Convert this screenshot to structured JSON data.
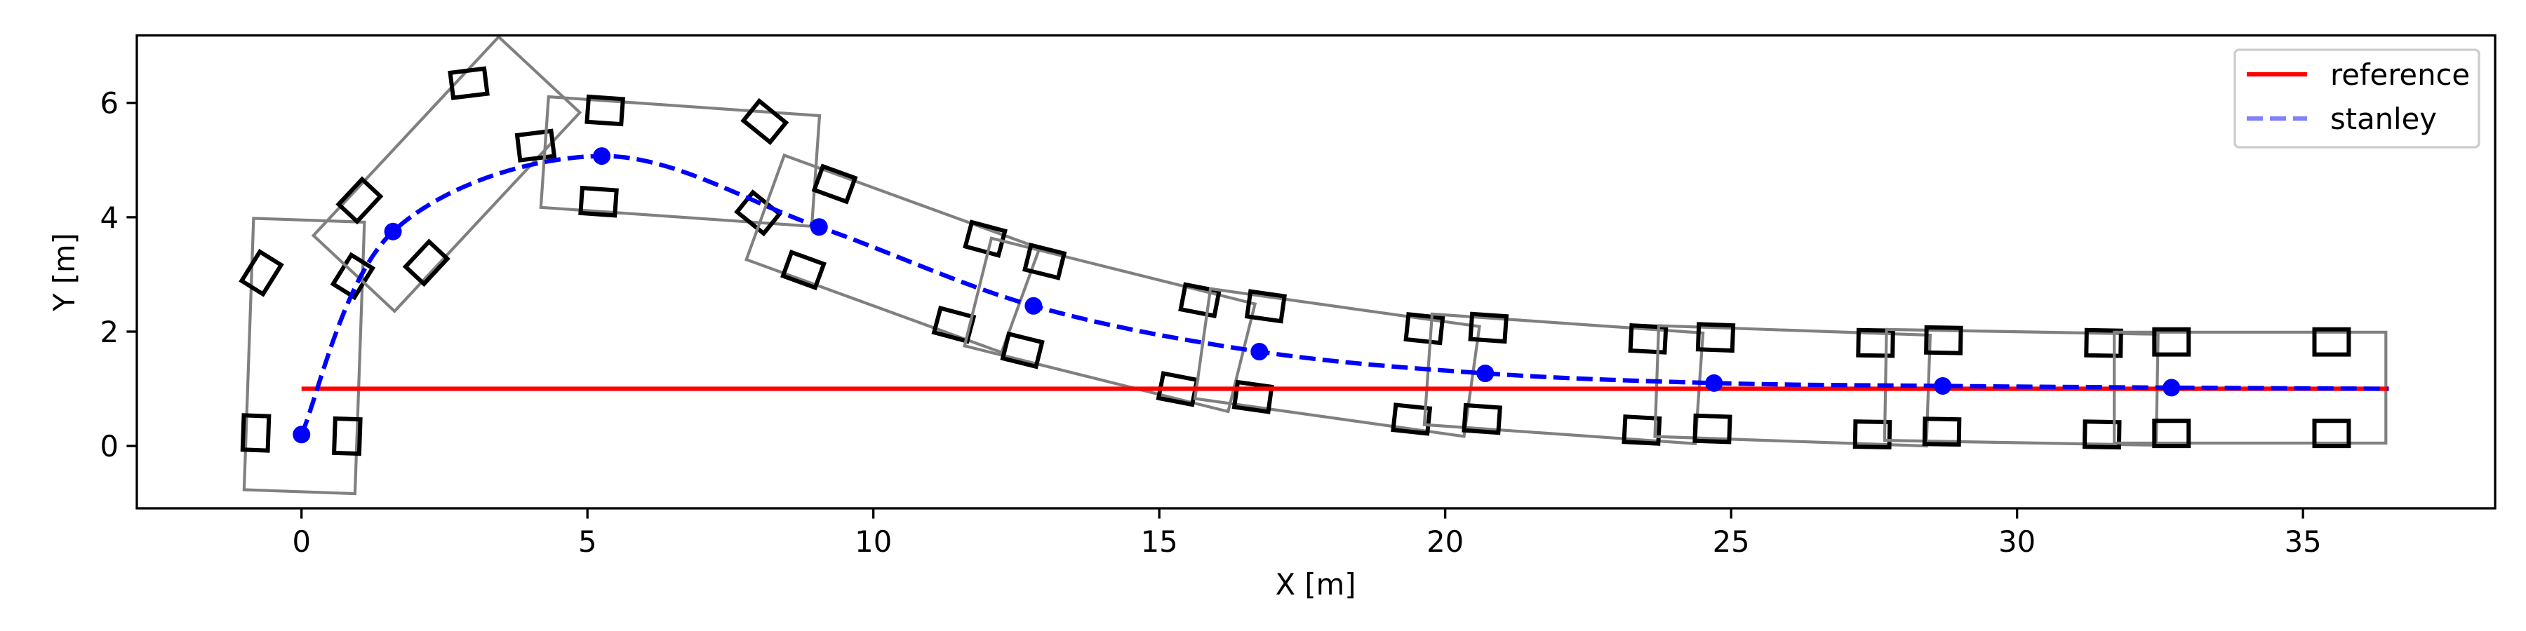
{
  "chart_data": {
    "type": "line",
    "title": "",
    "xlabel": "X [m]",
    "ylabel": "Y [m]",
    "xlim": [
      -2.88,
      38.36
    ],
    "ylim": [
      -1.09,
      7.18
    ],
    "xticks": [
      0,
      5,
      10,
      15,
      20,
      25,
      30,
      35
    ],
    "yticks": [
      0,
      2,
      4,
      6
    ],
    "grid": false,
    "legend": {
      "position": "top-right",
      "entries": [
        "reference",
        "stanley"
      ]
    },
    "series": [
      {
        "name": "reference",
        "color": "#ff0000",
        "style": "solid",
        "x": [
          0,
          36.5
        ],
        "y": [
          1.0,
          1.0
        ]
      },
      {
        "name": "stanley",
        "color": "#0000ff",
        "style": "dashed",
        "x": [
          0,
          1.6,
          5.25,
          9.05,
          12.8,
          16.75,
          20.7,
          24.7,
          28.7,
          32.7,
          36.5
        ],
        "y": [
          0.2,
          3.75,
          5.07,
          3.83,
          2.45,
          1.65,
          1.27,
          1.1,
          1.05,
          1.02,
          1.0
        ],
        "markers_x": [
          0,
          1.6,
          5.25,
          9.05,
          12.8,
          16.75,
          20.7,
          24.7,
          28.7,
          32.7
        ],
        "markers_y": [
          0.2,
          3.75,
          5.07,
          3.83,
          2.45,
          1.65,
          1.27,
          1.1,
          1.05,
          1.02
        ]
      }
    ],
    "vehicle_poses": {
      "columns": [
        "x",
        "y",
        "yaw_deg",
        "steer_deg"
      ],
      "rows": [
        [
          0,
          0.2,
          88,
          -30
        ],
        [
          1.6,
          3.75,
          47,
          -40
        ],
        [
          5.25,
          5.07,
          -4,
          -35
        ],
        [
          9.05,
          3.83,
          -20,
          5
        ],
        [
          12.8,
          2.45,
          -14,
          3
        ],
        [
          16.75,
          1.65,
          -8,
          2
        ],
        [
          20.7,
          1.27,
          -4,
          1
        ],
        [
          24.7,
          1.1,
          -2,
          1
        ],
        [
          28.7,
          1.05,
          -1,
          0
        ],
        [
          32.7,
          1.02,
          0,
          0
        ]
      ],
      "body_color": "#808080",
      "wheel_color": "#000000"
    }
  }
}
